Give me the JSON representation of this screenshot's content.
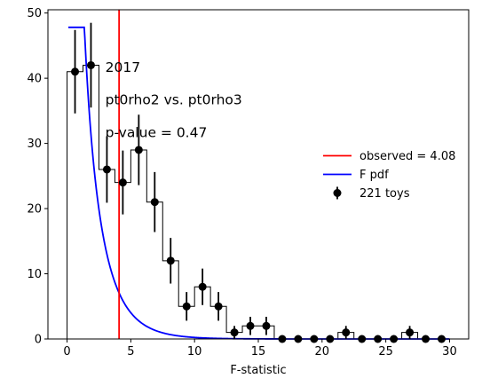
{
  "chart_data": {
    "type": "histogram",
    "annotations": [
      "2017",
      "pt0rho2 vs. pt0rho3",
      "p-value = 0.47"
    ],
    "xlabel": "F-statistic",
    "ylabel": "",
    "xlim": [
      -1.5,
      31.5
    ],
    "ylim": [
      0,
      50.5
    ],
    "x_ticks": [
      0,
      5,
      10,
      15,
      20,
      25,
      30
    ],
    "y_ticks": [
      0,
      10,
      20,
      30,
      40,
      50
    ],
    "grid": false,
    "legend_position": "center-right",
    "bin_edges": [
      0,
      1.25,
      2.5,
      3.75,
      5.0,
      6.25,
      7.5,
      8.75,
      10.0,
      11.25,
      12.5,
      13.75,
      15.0,
      16.25,
      17.5,
      18.75,
      20.0,
      21.25,
      22.5,
      23.75,
      25.0,
      26.25,
      27.5,
      28.75,
      30.0
    ],
    "series": [
      {
        "name": "221 toys",
        "kind": "errorbar-histogram",
        "color": "#000000",
        "counts": [
          41,
          42,
          26,
          24,
          29,
          21,
          12,
          5,
          8,
          5,
          1,
          2,
          2,
          0,
          0,
          0,
          0,
          1,
          0,
          0,
          0,
          1,
          0,
          0
        ],
        "errors": [
          6.4,
          6.5,
          5.1,
          4.9,
          5.4,
          4.6,
          3.5,
          2.2,
          2.8,
          2.2,
          1.0,
          1.4,
          1.4,
          0,
          0,
          0,
          0,
          1.0,
          0,
          0,
          0,
          1.0,
          0,
          0
        ]
      },
      {
        "name": "F pdf",
        "kind": "curve",
        "color": "#0000ff"
      },
      {
        "name": "observed = 4.08",
        "kind": "vline",
        "color": "#ff0000",
        "x": 4.08
      }
    ]
  }
}
